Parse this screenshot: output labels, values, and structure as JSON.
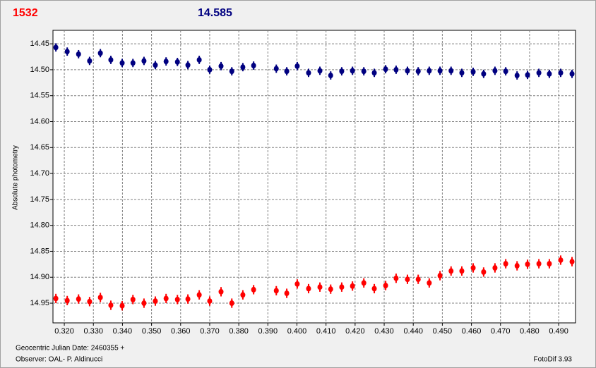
{
  "chart_data": {
    "type": "scatter",
    "title": "1532",
    "subtitle": "14.585",
    "y_label": "Absolute photometry",
    "x_label": "Geocentric Julian Date: 2460355 +",
    "observer": "Observer: OAL- P. Aldinucci",
    "software": "FotoDif 3.93",
    "y_inverted": true,
    "grid": true,
    "xlim": [
      0.3161,
      0.4958
    ],
    "ylim": [
      14.988,
      14.424
    ],
    "xticks": [
      {
        "value": 0.32,
        "label": "0.320"
      },
      {
        "value": 0.33,
        "label": "0.330"
      },
      {
        "value": 0.34,
        "label": "0.340"
      },
      {
        "value": 0.35,
        "label": "0.350"
      },
      {
        "value": 0.36,
        "label": "0.360"
      },
      {
        "value": 0.37,
        "label": "0.370"
      },
      {
        "value": 0.38,
        "label": "0.380"
      },
      {
        "value": 0.39,
        "label": "0.390"
      },
      {
        "value": 0.4,
        "label": "0.400"
      },
      {
        "value": 0.41,
        "label": "0.410"
      },
      {
        "value": 0.42,
        "label": "0.420"
      },
      {
        "value": 0.43,
        "label": "0.430"
      },
      {
        "value": 0.44,
        "label": "0.440"
      },
      {
        "value": 0.45,
        "label": "0.450"
      },
      {
        "value": 0.46,
        "label": "0.460"
      },
      {
        "value": 0.47,
        "label": "0.470"
      },
      {
        "value": 0.48,
        "label": "0.480"
      },
      {
        "value": 0.49,
        "label": "0.490"
      }
    ],
    "yticks": [
      14.45,
      {
        "value": 14.5,
        "label": "14.50"
      },
      14.55,
      {
        "value": 14.6,
        "label": "14.60"
      },
      14.65,
      {
        "value": 14.7,
        "label": "14.70"
      },
      14.75,
      {
        "value": 14.8,
        "label": "14.80"
      },
      14.85,
      {
        "value": 14.9,
        "label": "14.90"
      },
      14.95
    ],
    "x": [
      0.3171,
      0.321,
      0.3249,
      0.3287,
      0.3324,
      0.336,
      0.3399,
      0.3436,
      0.3474,
      0.3513,
      0.355,
      0.3589,
      0.3625,
      0.3664,
      0.37,
      0.3739,
      0.3776,
      0.3814,
      0.3851,
      0.3929,
      0.3965,
      0.4001,
      0.404,
      0.4079,
      0.4116,
      0.4154,
      0.4191,
      0.423,
      0.4266,
      0.4305,
      0.4341,
      0.438,
      0.4417,
      0.4455,
      0.4492,
      0.453,
      0.4567,
      0.4606,
      0.4642,
      0.4681,
      0.4718,
      0.4757,
      0.4793,
      0.4832,
      0.4868,
      0.4907,
      0.4946
    ],
    "series": [
      {
        "color": "#000080",
        "error": 0.008,
        "values": [
          14.457,
          14.465,
          14.47,
          14.483,
          14.468,
          14.481,
          14.487,
          14.487,
          14.483,
          14.491,
          14.484,
          14.485,
          14.491,
          14.481,
          14.5,
          14.493,
          14.503,
          14.495,
          14.492,
          14.498,
          14.503,
          14.493,
          14.506,
          14.502,
          14.511,
          14.503,
          14.502,
          14.503,
          14.506,
          14.499,
          14.5,
          14.502,
          14.503,
          14.502,
          14.502,
          14.502,
          14.506,
          14.504,
          14.508,
          14.502,
          14.503,
          14.511,
          14.51,
          14.506,
          14.508,
          14.506,
          14.508
        ]
      },
      {
        "color": "#ff0000",
        "error": 0.009,
        "values": [
          14.941,
          14.945,
          14.942,
          14.947,
          14.939,
          14.954,
          14.955,
          14.943,
          14.95,
          14.946,
          14.941,
          14.943,
          14.942,
          14.934,
          14.946,
          14.928,
          14.95,
          14.934,
          14.924,
          14.926,
          14.931,
          14.913,
          14.922,
          14.919,
          14.923,
          14.919,
          14.917,
          14.911,
          14.922,
          14.916,
          14.902,
          14.904,
          14.904,
          14.911,
          14.897,
          14.888,
          14.888,
          14.882,
          14.89,
          14.882,
          14.874,
          14.878,
          14.875,
          14.874,
          14.874,
          14.867,
          14.87
        ]
      }
    ]
  }
}
